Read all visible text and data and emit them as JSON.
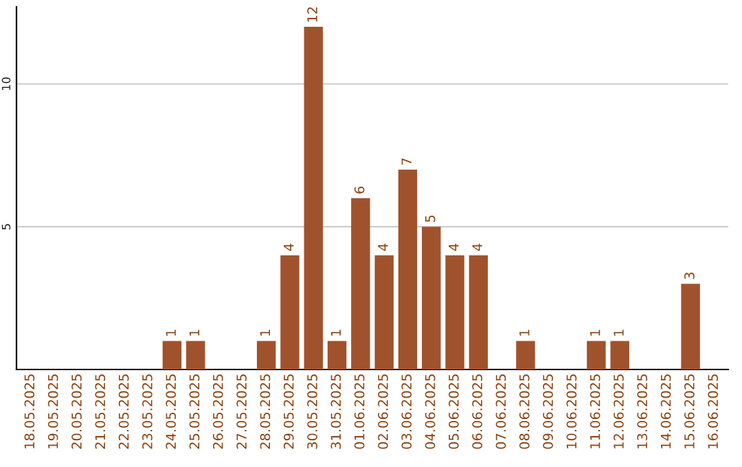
{
  "chart_data": {
    "type": "bar",
    "categories": [
      "18.05.2025",
      "19.05.2025",
      "20.05.2025",
      "21.05.2025",
      "22.05.2025",
      "23.05.2025",
      "24.05.2025",
      "25.05.2025",
      "26.05.2025",
      "27.05.2025",
      "28.05.2025",
      "29.05.2025",
      "30.05.2025",
      "31.05.2025",
      "01.06.2025",
      "02.06.2025",
      "03.06.2025",
      "04.06.2025",
      "05.06.2025",
      "06.06.2025",
      "07.06.2025",
      "08.06.2025",
      "09.06.2025",
      "10.06.2025",
      "11.06.2025",
      "12.06.2025",
      "13.06.2025",
      "14.06.2025",
      "15.06.2025",
      "16.06.2025"
    ],
    "values": [
      0,
      0,
      0,
      0,
      0,
      0,
      1,
      1,
      0,
      0,
      1,
      4,
      12,
      1,
      6,
      4,
      7,
      5,
      4,
      4,
      0,
      1,
      0,
      0,
      1,
      1,
      0,
      0,
      3,
      0
    ],
    "value_labels": [
      null,
      null,
      null,
      null,
      null,
      null,
      "1",
      "1",
      null,
      null,
      "1",
      "4",
      "12",
      "1",
      "6",
      "4",
      "7",
      "5",
      "4",
      "4",
      null,
      "1",
      null,
      null,
      "1",
      "1",
      null,
      null,
      "3",
      null
    ],
    "color": "#a0522d",
    "ylim": [
      0,
      12.7
    ],
    "yticks": [
      5,
      10
    ],
    "grid": "y"
  }
}
